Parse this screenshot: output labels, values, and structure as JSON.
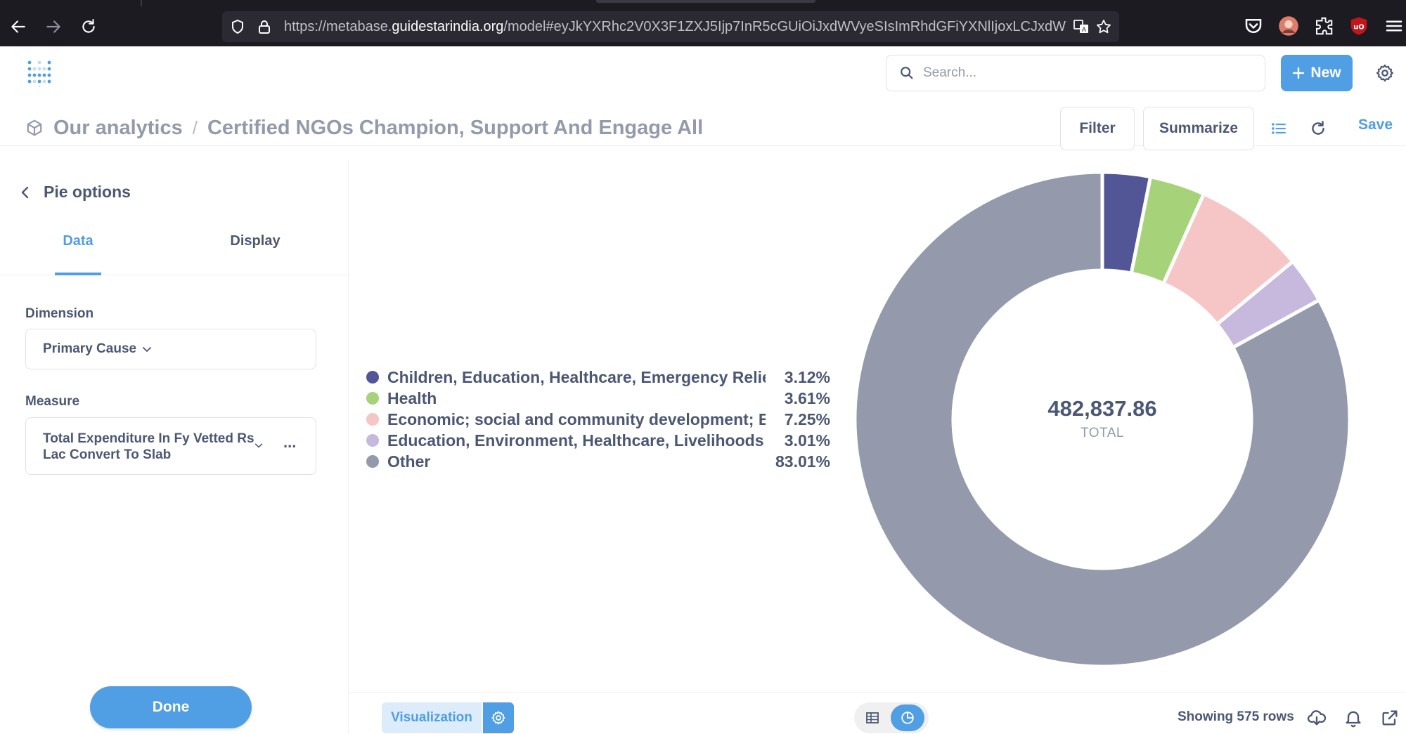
{
  "browser": {
    "url_prefix": "https://metabase.",
    "url_host": "guidestarindia.org",
    "url_suffix": "/model#eyJkYXRhc2V0X3F1ZXJ5Ijp7InR5cGUiOiJxdWVyeSIsImRhdGFiYXNlIjoxLCJxdW"
  },
  "header": {
    "search_placeholder": "Search...",
    "new_label": "New",
    "breadcrumb_collection": "Our analytics",
    "breadcrumb_separator": "/",
    "breadcrumb_title": "Certified NGOs Champion, Support And Engage All",
    "filter_label": "Filter",
    "summarize_label": "Summarize",
    "save_label": "Save"
  },
  "sidebar": {
    "title": "Pie options",
    "tabs": [
      {
        "label": "Data",
        "active": true
      },
      {
        "label": "Display",
        "active": false
      }
    ],
    "dimension_label": "Dimension",
    "dimension_value": "Primary Cause",
    "measure_label": "Measure",
    "measure_value_line1": "Total Expenditure In Fy Vetted Rs",
    "measure_value_line2": "Lac Convert To Slab",
    "more_label": "...",
    "done_label": "Done"
  },
  "chart_data": {
    "type": "pie",
    "title": "",
    "total_value": "482,837.86",
    "total_label": "TOTAL",
    "slices": [
      {
        "name": "Children, Education, Healthcare, Emergency Relief",
        "percent": 3.12,
        "percent_label": "3.12%",
        "color": "#525596"
      },
      {
        "name": "Health",
        "percent": 3.61,
        "percent_label": "3.61%",
        "color": "#a6d379"
      },
      {
        "name": "Economic; social and community development; E...",
        "percent": 7.25,
        "percent_label": "7.25%",
        "color": "#f5c6c5"
      },
      {
        "name": "Education, Environment, Healthcare, Livelihoods",
        "percent": 3.01,
        "percent_label": "3.01%",
        "color": "#c7b8de"
      },
      {
        "name": "Other",
        "percent": 83.01,
        "percent_label": "83.01%",
        "color": "#949aab"
      }
    ]
  },
  "footer": {
    "visualization_label": "Visualization",
    "rows_text": "Showing 575 rows"
  },
  "colors": {
    "brand": "#509ee3",
    "text": "#4c5773",
    "muted": "#949aab"
  },
  "icons": [
    "back-arrow-icon",
    "forward-arrow-icon",
    "reload-icon",
    "shield-icon",
    "lock-icon",
    "translate-icon",
    "star-icon",
    "pocket-icon",
    "profile-icon",
    "extensions-icon",
    "ublock-icon",
    "menu-icon",
    "metabase-logo-icon",
    "search-icon",
    "plus-icon",
    "gear-icon",
    "model-cube-icon",
    "chevron-left-icon",
    "chevron-down-icon",
    "bullet-list-icon",
    "refresh-icon",
    "table-icon",
    "pie-icon",
    "download-icon",
    "bell-icon",
    "external-link-icon"
  ]
}
